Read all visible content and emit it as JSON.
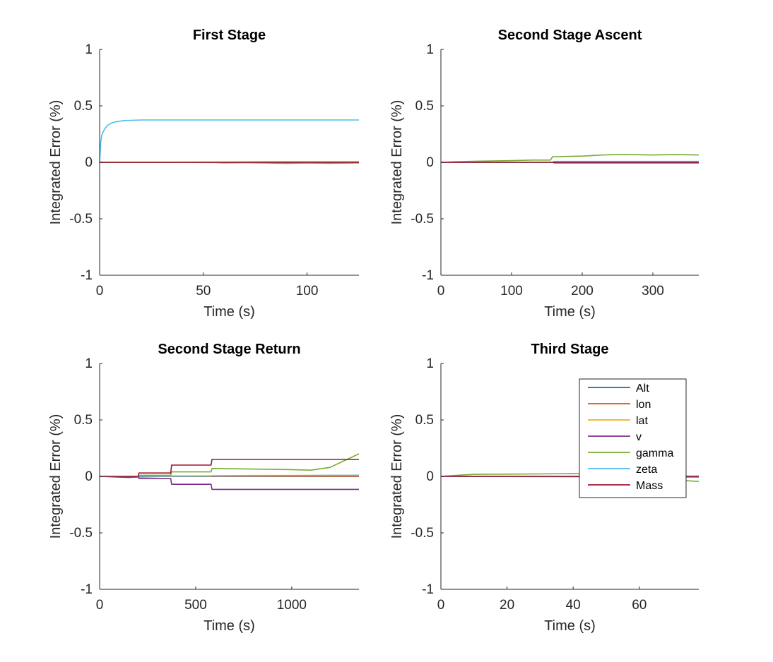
{
  "chart_data": [
    {
      "type": "line",
      "title": "First Stage",
      "xlabel": "Time (s)",
      "ylabel": "Integrated Error (%)",
      "xlim": [
        0,
        125
      ],
      "ylim": [
        -1,
        1
      ],
      "xticks": [
        0,
        50,
        100
      ],
      "yticks": [
        -1,
        -0.5,
        0,
        0.5,
        1
      ],
      "series": [
        {
          "color": "#0072BD",
          "x": [
            0,
            125
          ],
          "y": [
            0,
            0
          ]
        },
        {
          "color": "#D95319",
          "x": [
            0,
            60,
            90,
            125
          ],
          "y": [
            0,
            0.002,
            0.004,
            0.004
          ]
        },
        {
          "color": "#EDB120",
          "x": [
            0,
            125
          ],
          "y": [
            0,
            0
          ]
        },
        {
          "color": "#7E2F8E",
          "x": [
            0,
            125
          ],
          "y": [
            0,
            0
          ]
        },
        {
          "color": "#77AC30",
          "x": [
            0,
            55,
            60,
            70,
            80,
            85,
            90,
            100,
            110,
            120,
            125
          ],
          "y": [
            0,
            -0.002,
            -0.005,
            -0.004,
            -0.006,
            -0.008,
            -0.01,
            -0.006,
            -0.009,
            -0.007,
            -0.006
          ]
        },
        {
          "color": "#4DBEEE",
          "x": [
            0,
            0.5,
            1,
            2,
            3,
            4,
            6,
            8,
            10,
            12,
            15,
            20,
            125
          ],
          "y": [
            0,
            0.17,
            0.24,
            0.28,
            0.31,
            0.33,
            0.35,
            0.36,
            0.365,
            0.37,
            0.372,
            0.375,
            0.375
          ]
        },
        {
          "color": "#A2142F",
          "x": [
            0,
            125
          ],
          "y": [
            0,
            0
          ]
        }
      ]
    },
    {
      "type": "line",
      "title": "Second Stage Ascent",
      "xlabel": "Time (s)",
      "ylabel": "Integrated Error (%)",
      "xlim": [
        0,
        365
      ],
      "ylim": [
        -1,
        1
      ],
      "xticks": [
        0,
        100,
        200,
        300
      ],
      "yticks": [
        -1,
        -0.5,
        0,
        0.5,
        1
      ],
      "series": [
        {
          "color": "#0072BD",
          "x": [
            0,
            365
          ],
          "y": [
            0,
            0
          ]
        },
        {
          "color": "#D95319",
          "x": [
            0,
            365
          ],
          "y": [
            0,
            0
          ]
        },
        {
          "color": "#EDB120",
          "x": [
            0,
            365
          ],
          "y": [
            0,
            0
          ]
        },
        {
          "color": "#7E2F8E",
          "x": [
            0,
            158,
            160,
            365
          ],
          "y": [
            0,
            0,
            -0.005,
            -0.005
          ]
        },
        {
          "color": "#77AC30",
          "x": [
            0,
            20,
            50,
            100,
            130,
            155,
            158,
            160,
            200,
            230,
            260,
            300,
            330,
            365
          ],
          "y": [
            0,
            0.005,
            0.01,
            0.015,
            0.02,
            0.02,
            0.05,
            0.05,
            0.055,
            0.065,
            0.07,
            0.065,
            0.068,
            0.065
          ]
        },
        {
          "color": "#4DBEEE",
          "x": [
            0,
            158,
            160,
            365
          ],
          "y": [
            0,
            0,
            0.008,
            0.008
          ]
        },
        {
          "color": "#A2142F",
          "x": [
            0,
            365
          ],
          "y": [
            0,
            0
          ]
        }
      ]
    },
    {
      "type": "line",
      "title": "Second Stage Return",
      "xlabel": "Time (s)",
      "ylabel": "Integrated Error (%)",
      "xlim": [
        0,
        1350
      ],
      "ylim": [
        -1,
        1
      ],
      "xticks": [
        0,
        500,
        1000
      ],
      "yticks": [
        -1,
        -0.5,
        0,
        0.5,
        1
      ],
      "series": [
        {
          "color": "#0072BD",
          "x": [
            0,
            150,
            200,
            370,
            1350
          ],
          "y": [
            0,
            -0.01,
            -0.005,
            0,
            0
          ]
        },
        {
          "color": "#D95319",
          "x": [
            0,
            1350
          ],
          "y": [
            0,
            0
          ]
        },
        {
          "color": "#EDB120",
          "x": [
            0,
            370,
            375,
            580,
            585,
            800,
            1350
          ],
          "y": [
            0,
            0,
            0.004,
            0.004,
            0.006,
            0.008,
            0.01
          ]
        },
        {
          "color": "#7E2F8E",
          "x": [
            0,
            200,
            205,
            370,
            375,
            580,
            585,
            1350
          ],
          "y": [
            0,
            0,
            -0.02,
            -0.02,
            -0.07,
            -0.07,
            -0.115,
            -0.115
          ]
        },
        {
          "color": "#77AC30",
          "x": [
            0,
            200,
            205,
            370,
            375,
            580,
            585,
            800,
            1000,
            1100,
            1200,
            1300,
            1350
          ],
          "y": [
            0,
            0.002,
            0.01,
            0.01,
            0.04,
            0.04,
            0.07,
            0.065,
            0.06,
            0.055,
            0.08,
            0.16,
            0.2
          ]
        },
        {
          "color": "#4DBEEE",
          "x": [
            0,
            1350
          ],
          "y": [
            0,
            0.01
          ]
        },
        {
          "color": "#A2142F",
          "x": [
            0,
            200,
            205,
            370,
            375,
            580,
            585,
            1350
          ],
          "y": [
            0,
            0,
            0.03,
            0.03,
            0.1,
            0.1,
            0.15,
            0.15
          ]
        }
      ]
    },
    {
      "type": "line",
      "title": "Third Stage",
      "xlabel": "Time (s)",
      "ylabel": "Integrated Error (%)",
      "xlim": [
        0,
        78
      ],
      "ylim": [
        -1,
        1
      ],
      "xticks": [
        0,
        20,
        40,
        60
      ],
      "yticks": [
        -1,
        -0.5,
        0,
        0.5,
        1
      ],
      "legend": {
        "location": "top-right",
        "entries": [
          "Alt",
          "lon",
          "lat",
          "v",
          "gamma",
          "zeta",
          "Mass"
        ]
      },
      "series": [
        {
          "name": "Alt",
          "color": "#0072BD",
          "x": [
            0,
            78
          ],
          "y": [
            0,
            0.002
          ]
        },
        {
          "name": "lon",
          "color": "#D95319",
          "x": [
            0,
            78
          ],
          "y": [
            0,
            0
          ]
        },
        {
          "name": "lat",
          "color": "#EDB120",
          "x": [
            0,
            78
          ],
          "y": [
            0,
            0
          ]
        },
        {
          "name": "v",
          "color": "#7E2F8E",
          "x": [
            0,
            78
          ],
          "y": [
            0,
            -0.005
          ]
        },
        {
          "name": "gamma",
          "color": "#77AC30",
          "x": [
            0,
            5,
            10,
            20,
            30,
            40,
            50,
            60,
            65,
            70,
            78
          ],
          "y": [
            0,
            0.01,
            0.018,
            0.02,
            0.022,
            0.025,
            0.02,
            0.01,
            -0.01,
            -0.03,
            -0.045
          ]
        },
        {
          "name": "zeta",
          "color": "#4DBEEE",
          "x": [
            0,
            78
          ],
          "y": [
            0,
            0
          ]
        },
        {
          "name": "Mass",
          "color": "#A2142F",
          "x": [
            0,
            78
          ],
          "y": [
            0,
            0
          ]
        }
      ]
    }
  ]
}
